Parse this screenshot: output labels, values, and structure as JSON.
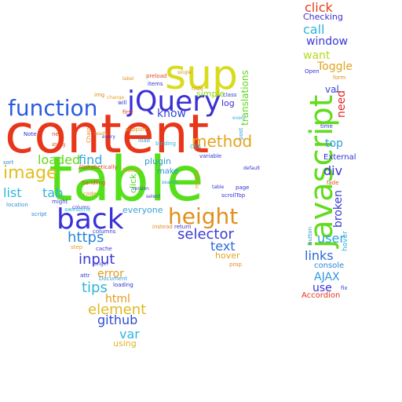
{
  "cloud": {
    "words": [
      {
        "text": "content",
        "color": "#e8361b"
      },
      {
        "text": "table",
        "color": "#55e01a"
      },
      {
        "text": "back",
        "color": "#3a31d8"
      },
      {
        "text": "sup",
        "color": "#d8dc1d"
      },
      {
        "text": "jQuery",
        "color": "#3b2fd6"
      },
      {
        "text": "function",
        "color": "#2b5be0"
      },
      {
        "text": "javascript",
        "color": "#62dc1c"
      },
      {
        "text": "height",
        "color": "#e0901b"
      },
      {
        "text": "image",
        "color": "#e3be20"
      },
      {
        "text": "loaded",
        "color": "#61d91b"
      },
      {
        "text": "method",
        "color": "#e4a41d"
      },
      {
        "text": "find",
        "color": "#36a7df"
      },
      {
        "text": "list",
        "color": "#2cb6e0"
      },
      {
        "text": "tab",
        "color": "#2fb4de"
      },
      {
        "text": "https",
        "color": "#2787d8"
      },
      {
        "text": "selector",
        "color": "#3a3bd4"
      },
      {
        "text": "text",
        "color": "#2d6ddb"
      },
      {
        "text": "input",
        "color": "#3b39d4"
      },
      {
        "text": "error",
        "color": "#e39c1d"
      },
      {
        "text": "tips",
        "color": "#31b4dc"
      },
      {
        "text": "html",
        "color": "#e49a1e"
      },
      {
        "text": "element",
        "color": "#e1b91e"
      },
      {
        "text": "var",
        "color": "#2fb6de"
      },
      {
        "text": "github",
        "color": "#2b4cd8"
      },
      {
        "text": "using",
        "color": "#e0b61f"
      },
      {
        "text": "links",
        "color": "#2b67dc"
      },
      {
        "text": "AJAX",
        "color": "#2f96df"
      },
      {
        "text": "use",
        "color": "#3a30d4"
      },
      {
        "text": "user",
        "color": "#2da3de"
      },
      {
        "text": "div",
        "color": "#3d31d6"
      },
      {
        "text": "top",
        "color": "#2f9cdd"
      },
      {
        "text": "want",
        "color": "#b2dc1e"
      },
      {
        "text": "Toggle",
        "color": "#e1a31e"
      },
      {
        "text": "window",
        "color": "#3a38d3"
      },
      {
        "text": "call",
        "color": "#2fb3de"
      },
      {
        "text": "click",
        "color": "#e1401c"
      },
      {
        "text": "Checking",
        "color": "#3b31d1"
      },
      {
        "text": "need",
        "color": "#e0251f"
      },
      {
        "text": "val",
        "color": "#3444d5"
      },
      {
        "text": "broken",
        "color": "#3a3bd6"
      },
      {
        "text": "translations",
        "color": "#5fd81c"
      },
      {
        "text": "know",
        "color": "#3346d8"
      },
      {
        "text": "simple",
        "color": "#8bd81d"
      },
      {
        "text": "log",
        "color": "#3a32d1"
      },
      {
        "text": "plugin",
        "color": "#2f9ad8"
      },
      {
        "text": "everyone",
        "color": "#3a9fd6"
      },
      {
        "text": "hover",
        "color": "#e1a41e"
      },
      {
        "text": "console",
        "color": "#2b86d8"
      },
      {
        "text": "Accordion",
        "color": "#e3361c"
      },
      {
        "text": "External",
        "color": "#3236d3"
      },
      {
        "text": "click",
        "color": "#49d51c"
      },
      {
        "text": "make",
        "color": "#2f92d8"
      },
      {
        "text": "class",
        "color": "#3039d2"
      },
      {
        "text": "hide",
        "color": "#e1961e"
      },
      {
        "text": "items",
        "color": "#3b36d0"
      },
      {
        "text": "preload",
        "color": "#e0491c"
      },
      {
        "text": "page",
        "color": "#3235d1"
      },
      {
        "text": "post",
        "color": "#2f98d6"
      },
      {
        "text": "instead",
        "color": "#e18b1d"
      },
      {
        "text": "return",
        "color": "#3b30d1"
      },
      {
        "text": "prop",
        "color": "#e4891d"
      },
      {
        "text": "Note",
        "color": "#3034d2"
      },
      {
        "text": "sort",
        "color": "#2f86d8"
      },
      {
        "text": "location",
        "color": "#2f8ed8"
      },
      {
        "text": "might",
        "color": "#3a39d4"
      },
      {
        "text": "column",
        "color": "#3231d1"
      },
      {
        "text": "cache",
        "color": "#3b35d1"
      },
      {
        "text": "columns",
        "color": "#3a38d1"
      },
      {
        "text": "loading",
        "color": "#3035d2"
      },
      {
        "text": "Document",
        "color": "#2f9fd8"
      },
      {
        "text": "CSS",
        "color": "#2fb2dc"
      },
      {
        "text": "fix",
        "color": "#3a3fd3"
      },
      {
        "text": "form",
        "color": "#e18a1e"
      },
      {
        "text": "Open",
        "color": "#3b31d0"
      },
      {
        "text": "time",
        "color": "#3036d3"
      },
      {
        "text": "button",
        "color": "#2f97d8"
      },
      {
        "text": "hover",
        "color": "#2fb0dc"
      },
      {
        "text": "fade",
        "color": "#e14a1c"
      },
      {
        "text": "Alphabetically",
        "color": "#e1401c"
      },
      {
        "text": "version",
        "color": "#3a3ad1"
      },
      {
        "text": "script",
        "color": "#2f87d8"
      },
      {
        "text": "img",
        "color": "#e1891d"
      },
      {
        "text": "will",
        "color": "#3035d2"
      },
      {
        "text": "change",
        "color": "#e1a21e"
      },
      {
        "text": "blocks",
        "color": "#e1961e"
      },
      {
        "text": "binding",
        "color": "#2fb5dc"
      },
      {
        "text": "scrollTop",
        "color": "#3036d2"
      },
      {
        "text": "variable",
        "color": "#3035d2"
      },
      {
        "text": "master",
        "color": "#e1921e"
      },
      {
        "text": "search",
        "color": "#2f98d8"
      },
      {
        "text": "handling",
        "color": "#e14b1c"
      },
      {
        "text": "origin",
        "color": "#3a3ad1"
      },
      {
        "text": "code",
        "color": "#e1911e"
      },
      {
        "text": "Chain",
        "color": "#e1891d"
      },
      {
        "text": "attr",
        "color": "#3036d2"
      },
      {
        "text": "awesome",
        "color": "#2fb0dc"
      },
      {
        "text": "step",
        "color": "#e1a01e"
      },
      {
        "text": "table",
        "color": "#3035d2"
      },
      {
        "text": "label",
        "color": "#e1911e"
      },
      {
        "text": "first",
        "color": "#e1401c"
      },
      {
        "text": "support",
        "color": "#e1921e"
      },
      {
        "text": "select",
        "color": "#3a3ad1"
      },
      {
        "text": "new",
        "color": "#e1401c"
      },
      {
        "text": "load",
        "color": "#2f98d8"
      },
      {
        "text": "default",
        "color": "#3035d2"
      },
      {
        "text": "single",
        "color": "#e1891d"
      },
      {
        "text": "every",
        "color": "#3036d2"
      },
      {
        "text": "ready",
        "color": "#e1921e"
      },
      {
        "text": "event",
        "color": "#2fb0dc"
      },
      {
        "text": "string",
        "color": "#e1401c"
      }
    ]
  }
}
